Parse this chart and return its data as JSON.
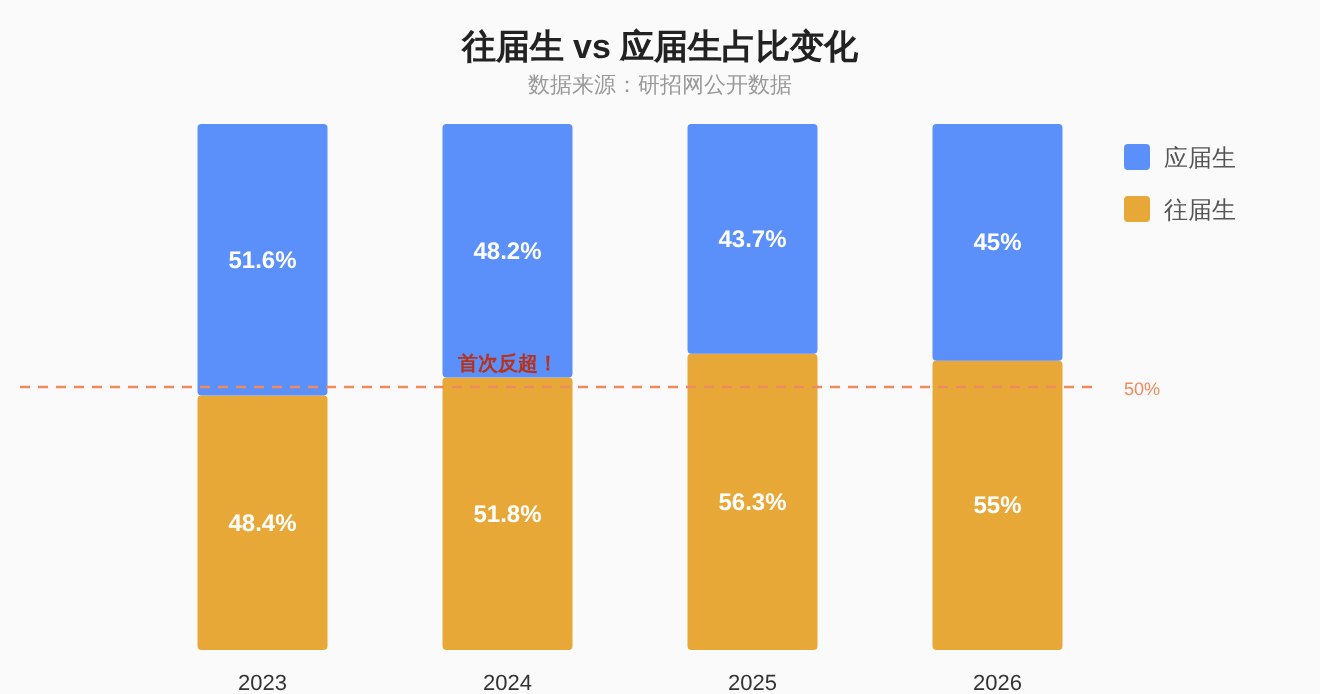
{
  "chart_data": {
    "type": "bar",
    "title": "往届生 vs 应届生占比变化",
    "subtitle": "数据来源：研招网公开数据",
    "categories": [
      "2023",
      "2024",
      "2025",
      "2026"
    ],
    "stacked": true,
    "series": [
      {
        "name": "往届生",
        "color": "#e8a838",
        "values": [
          48.4,
          51.8,
          56.3,
          55
        ],
        "value_labels": [
          "48.4%",
          "51.8%",
          "56.3%",
          "55%"
        ]
      },
      {
        "name": "应届生",
        "color": "#5b8ff9",
        "values": [
          51.6,
          48.2,
          43.7,
          45
        ],
        "value_labels": [
          "51.6%",
          "48.2%",
          "43.7%",
          "45%"
        ]
      }
    ],
    "ref_lines": [
      {
        "axis": "y",
        "value": 50,
        "label": "50%",
        "color": "#f08a5d",
        "line_style": "dashed"
      }
    ],
    "annotations": [
      {
        "text": "首次反超！",
        "x": "2024",
        "y": 51.8
      }
    ],
    "legend": "right"
  }
}
